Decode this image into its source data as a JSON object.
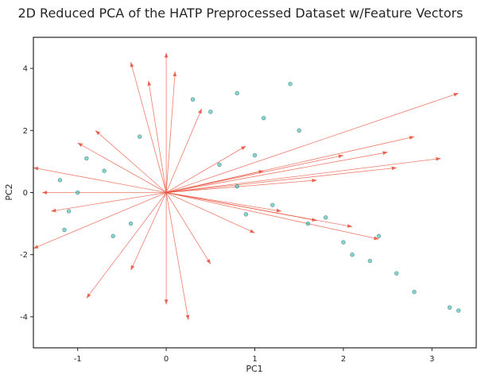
{
  "chart_data": {
    "type": "scatter",
    "title": "2D Reduced PCA of the HATP Preprocessed Dataset w/Feature Vectors",
    "xlabel": "PC1",
    "ylabel": "PC2",
    "xlim": [
      -1.5,
      3.5
    ],
    "ylim": [
      -5,
      5
    ],
    "xticks": [
      -1,
      0,
      1,
      2,
      3
    ],
    "yticks": [
      -4,
      -2,
      0,
      2,
      4
    ],
    "grid": false,
    "legend": "none",
    "colors": {
      "points_fill": "#20b2aa",
      "points_edge": "#2f6f6a",
      "vectors": "#e8503a",
      "frame": "#262626"
    },
    "series": [
      {
        "kind": "points",
        "points_sample": [
          [
            -1.2,
            0.4
          ],
          [
            -1.1,
            -0.6
          ],
          [
            -0.9,
            1.1
          ],
          [
            -1.0,
            0.0
          ],
          [
            -0.7,
            0.7
          ],
          [
            -0.6,
            -1.4
          ],
          [
            -0.3,
            1.8
          ],
          [
            0.3,
            3.0
          ],
          [
            0.5,
            2.6
          ],
          [
            0.8,
            3.2
          ],
          [
            1.1,
            2.4
          ],
          [
            1.4,
            3.5
          ],
          [
            0.8,
            0.2
          ],
          [
            1.2,
            -0.4
          ],
          [
            1.6,
            -1.0
          ],
          [
            2.0,
            -1.6
          ],
          [
            2.3,
            -2.2
          ],
          [
            2.6,
            -2.6
          ],
          [
            2.8,
            -3.2
          ],
          [
            3.2,
            -3.7
          ],
          [
            3.3,
            -3.8
          ],
          [
            1.5,
            2.0
          ],
          [
            0.9,
            -0.7
          ],
          [
            1.8,
            -0.8
          ],
          [
            2.4,
            -1.4
          ],
          [
            -1.15,
            -1.2
          ],
          [
            -0.4,
            -1.0
          ],
          [
            0.6,
            0.9
          ],
          [
            1.0,
            1.2
          ],
          [
            2.1,
            -2.0
          ]
        ]
      },
      {
        "kind": "vectors",
        "origin": [
          0,
          0
        ],
        "endpoints": [
          [
            3.3,
            3.2
          ],
          [
            2.8,
            1.8
          ],
          [
            2.0,
            1.2
          ],
          [
            3.1,
            1.1
          ],
          [
            2.6,
            0.8
          ],
          [
            1.7,
            0.4
          ],
          [
            2.4,
            -1.5
          ],
          [
            2.1,
            -1.1
          ],
          [
            1.3,
            -0.6
          ],
          [
            0.9,
            1.5
          ],
          [
            0.4,
            2.7
          ],
          [
            0.0,
            4.5
          ],
          [
            -0.4,
            4.2
          ],
          [
            -0.2,
            3.6
          ],
          [
            0.1,
            3.9
          ],
          [
            -0.8,
            2.0
          ],
          [
            -1.0,
            1.6
          ],
          [
            -1.5,
            0.8
          ],
          [
            -1.4,
            0.0
          ],
          [
            -1.3,
            -0.6
          ],
          [
            -1.5,
            -1.8
          ],
          [
            -0.9,
            -3.4
          ],
          [
            -0.4,
            -2.5
          ],
          [
            0.0,
            -3.6
          ],
          [
            0.25,
            -4.1
          ],
          [
            0.5,
            -2.3
          ],
          [
            1.0,
            -1.3
          ],
          [
            1.7,
            -0.9
          ],
          [
            2.5,
            1.3
          ],
          [
            1.1,
            0.7
          ]
        ]
      }
    ]
  }
}
